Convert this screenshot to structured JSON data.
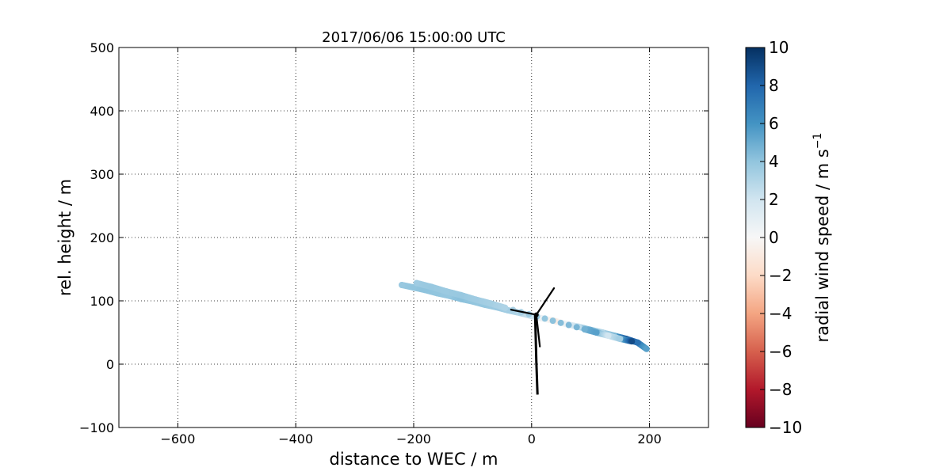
{
  "chart_data": {
    "type": "scatter",
    "title": "2017/06/06 15:00:00 UTC",
    "xlabel": "distance to WEC / m",
    "ylabel": "rel. height / m",
    "xlim": [
      -700,
      300
    ],
    "ylim": [
      -100,
      500
    ],
    "xticks": [
      -600,
      -400,
      -200,
      0,
      200
    ],
    "yticks": [
      -100,
      0,
      100,
      200,
      300,
      400,
      500
    ],
    "xtick_labels": [
      "−600",
      "−400",
      "−200",
      "0",
      "200"
    ],
    "ytick_labels": [
      "−100",
      "0",
      "100",
      "200",
      "300",
      "400",
      "500"
    ],
    "grid": true,
    "colorbar": {
      "label": "radial wind speed / m s",
      "label_superscript": "−1",
      "min": -10,
      "max": 10,
      "ticks": [
        -10,
        -8,
        -6,
        -4,
        -2,
        0,
        2,
        4,
        6,
        8,
        10
      ],
      "tick_labels": [
        "−10",
        "−8",
        "−6",
        "−4",
        "−2",
        "0",
        "2",
        "4",
        "6",
        "8",
        "10"
      ],
      "colormap": "RdBu",
      "colormap_stops": [
        "#67001f",
        "#b2182b",
        "#d6604d",
        "#f4a582",
        "#fddbc7",
        "#f7f7f7",
        "#d1e5f0",
        "#92c5de",
        "#4393c3",
        "#2166ac",
        "#053061"
      ]
    },
    "series": [
      {
        "points": [
          {
            "x": -220,
            "y": 125,
            "v": 3.8
          },
          {
            "x": -200,
            "y": 121,
            "v": 4.0
          },
          {
            "x": -180,
            "y": 117,
            "v": 4.1
          },
          {
            "x": -160,
            "y": 112,
            "v": 4.0
          },
          {
            "x": -140,
            "y": 108,
            "v": 3.9
          },
          {
            "x": -120,
            "y": 103,
            "v": 4.2
          },
          {
            "x": -100,
            "y": 99,
            "v": 4.0
          },
          {
            "x": -80,
            "y": 94,
            "v": 3.9
          },
          {
            "x": -60,
            "y": 90,
            "v": 3.7
          },
          {
            "x": -40,
            "y": 85,
            "v": 3.5
          },
          {
            "x": -20,
            "y": 81,
            "v": 3.0
          },
          {
            "x": 0,
            "y": 76,
            "v": 2.2
          },
          {
            "x": 20,
            "y": 72,
            "v": 0.5
          },
          {
            "x": 40,
            "y": 68,
            "v": -0.8
          },
          {
            "x": 60,
            "y": 63,
            "v": 0.6
          },
          {
            "x": 80,
            "y": 59,
            "v": 2.5
          },
          {
            "x": 100,
            "y": 54,
            "v": 5.0
          },
          {
            "x": 120,
            "y": 50,
            "v": 3.0
          },
          {
            "x": 140,
            "y": 45,
            "v": 4.5
          },
          {
            "x": 160,
            "y": 40,
            "v": 8.5
          },
          {
            "x": 180,
            "y": 34,
            "v": 7.5
          },
          {
            "x": 195,
            "y": 24,
            "v": 5.5
          }
        ]
      },
      {
        "points": [
          {
            "x": -195,
            "y": 128,
            "v": 3.6
          },
          {
            "x": -170,
            "y": 122,
            "v": 3.8
          },
          {
            "x": -145,
            "y": 115,
            "v": 3.7
          },
          {
            "x": -120,
            "y": 109,
            "v": 3.8
          },
          {
            "x": -95,
            "y": 102,
            "v": 3.6
          },
          {
            "x": -70,
            "y": 96,
            "v": 3.4
          },
          {
            "x": -45,
            "y": 89,
            "v": 3.1
          },
          {
            "x": 90,
            "y": 55,
            "v": 4.8
          },
          {
            "x": 110,
            "y": 50,
            "v": 5.5
          },
          {
            "x": 130,
            "y": 45,
            "v": 2.0
          },
          {
            "x": 150,
            "y": 40,
            "v": 3.5
          },
          {
            "x": 170,
            "y": 36,
            "v": 9.0
          }
        ]
      }
    ],
    "turbine": {
      "hub": [
        8,
        78
      ],
      "tower": [
        [
          6,
          78
        ],
        [
          8,
          5
        ],
        [
          10,
          -48
        ]
      ],
      "blades": [
        [
          [
            8,
            78
          ],
          [
            38,
            120
          ]
        ],
        [
          [
            8,
            78
          ],
          [
            -35,
            86
          ]
        ],
        [
          [
            8,
            78
          ],
          [
            14,
            28
          ]
        ]
      ]
    }
  }
}
